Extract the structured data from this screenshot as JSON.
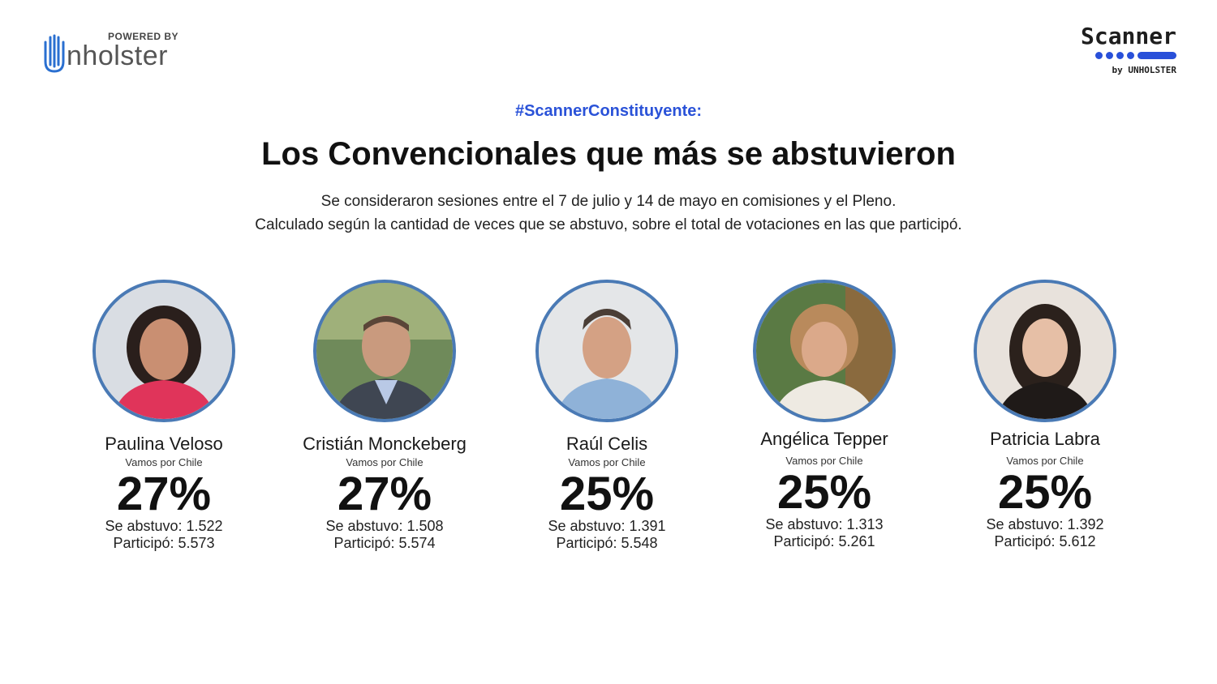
{
  "branding": {
    "powered_by": "POWERED BY",
    "unholster_word": "nholster",
    "scanner_word": "Scanner",
    "scanner_by": "by UNHOLSTER",
    "accent_color": "#2a52d8",
    "portrait_border_color": "#4a7ab5"
  },
  "header": {
    "hashtag": "#ScannerConstituyente:",
    "title": "Los Convencionales que más se abstuvieron",
    "subtitle_line1": "Se consideraron sesiones entre el 7 de julio y 14 de mayo en comisiones y el Pleno.",
    "subtitle_line2": "Calculado según la cantidad de veces que se abstuvo, sobre el total de votaciones en las que participó."
  },
  "members": [
    {
      "name": "Paulina Veloso",
      "party": "Vamos por Chile",
      "pct": "27%",
      "abstained": "Se abstuvo: 1.522",
      "participated": "Participó: 5.573"
    },
    {
      "name": "Cristián Monckeberg",
      "party": "Vamos por Chile",
      "pct": "27%",
      "abstained": "Se abstuvo: 1.508",
      "participated": "Participó: 5.574"
    },
    {
      "name": "Raúl Celis",
      "party": "Vamos por Chile",
      "pct": "25%",
      "abstained": "Se abstuvo: 1.391",
      "participated": "Participó: 5.548"
    },
    {
      "name": "Angélica Tepper",
      "party": "Vamos por Chile",
      "pct": "25%",
      "abstained": "Se abstuvo: 1.313",
      "participated": "Participó: 5.261"
    },
    {
      "name": "Patricia Labra",
      "party": "Vamos por Chile",
      "pct": "25%",
      "abstained": "Se abstuvo: 1.392",
      "participated": "Participó: 5.612"
    }
  ]
}
